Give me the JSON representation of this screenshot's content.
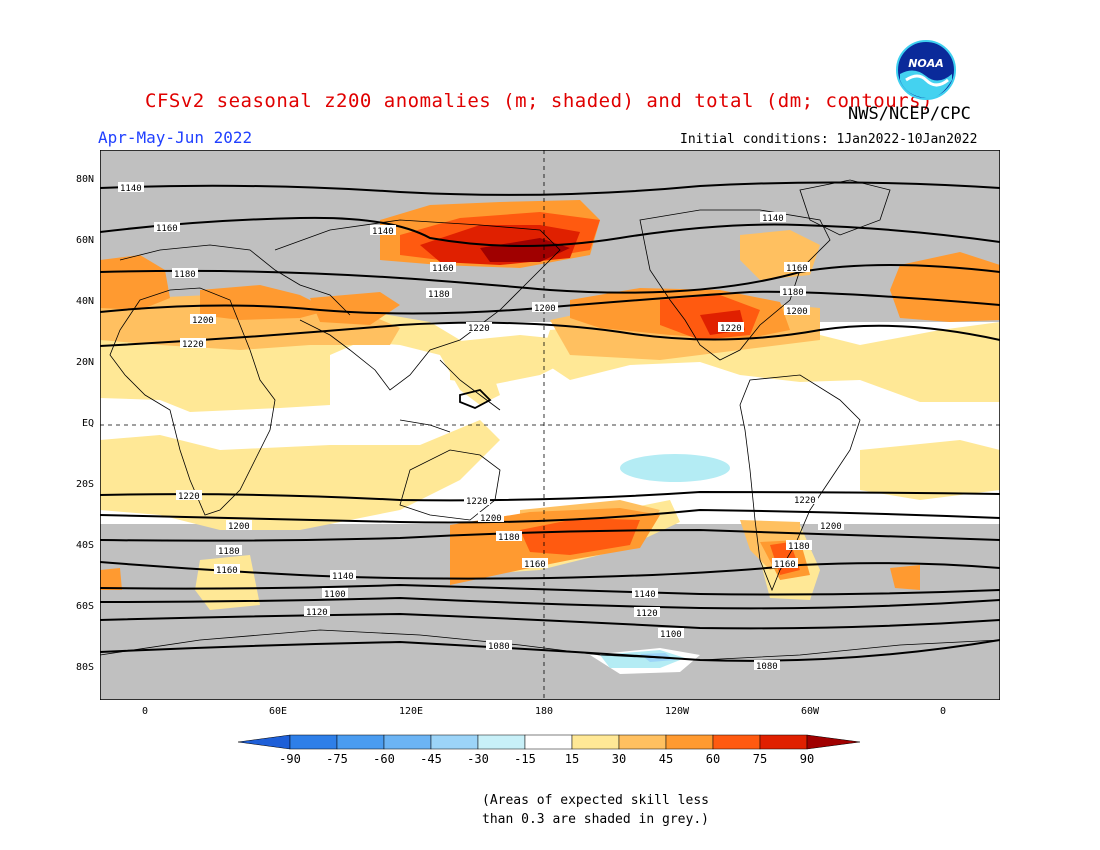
{
  "title": "CFSv2 seasonal z200 anomalies (m; shaded) and total (dm; contours)",
  "agency": "NWS/NCEP/CPC",
  "logo_text": "NOAA",
  "season": "Apr-May-Jun 2022",
  "initial_conditions": "Initial conditions: 1Jan2022-10Jan2022",
  "map": {
    "lat_labels": [
      "80N",
      "60N",
      "40N",
      "20N",
      "EQ",
      "20S",
      "40S",
      "60S",
      "80S"
    ],
    "lon_labels": [
      "0",
      "60E",
      "120E",
      "180",
      "120W",
      "60W",
      "0"
    ],
    "contour_labels": [
      "1140",
      "1160",
      "1180",
      "1200",
      "1220",
      "1100",
      "1120",
      "1080"
    ]
  },
  "colorbar": {
    "labels": [
      "-90",
      "-75",
      "-60",
      "-45",
      "-30",
      "-15",
      "15",
      "30",
      "45",
      "60",
      "75",
      "90"
    ],
    "colors": [
      "#1e5fd8",
      "#2e7fe8",
      "#4a9cf0",
      "#6cb4f4",
      "#9cd4f8",
      "#c8f0f8",
      "#ffffff",
      "#ffe896",
      "#ffc060",
      "#ff9a30",
      "#ff5a10",
      "#e02000",
      "#a00000"
    ]
  },
  "note_line1": "(Areas of expected skill less",
  "note_line2": "than 0.3 are shaded in grey.)"
}
